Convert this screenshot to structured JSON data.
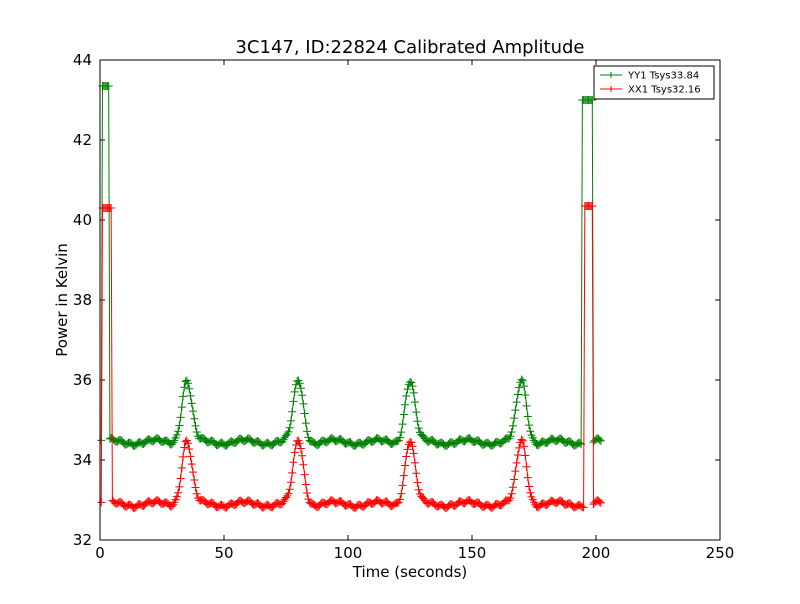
{
  "chart_data": {
    "type": "line",
    "title": "3C147, ID:22824 Calibrated Amplitude",
    "xlabel": "Time (seconds)",
    "ylabel": "Power in Kelvin",
    "xlim": [
      0,
      250
    ],
    "ylim": [
      32,
      44
    ],
    "xticks": [
      "0",
      "50",
      "100",
      "150",
      "200",
      "250"
    ],
    "yticks": [
      "32",
      "34",
      "36",
      "38",
      "40",
      "42",
      "44"
    ],
    "grid": false,
    "legend_position": "top-right",
    "marker": "+",
    "series": [
      {
        "name": "YY1 Tsys33.84",
        "color": "#008000",
        "baseline": 34.45,
        "peak_height": 1.55,
        "peak_centers": [
          35,
          80,
          125,
          170
        ],
        "peak_halfwidth": 2.0,
        "plateau_start": [
          1,
          3.5,
          43.35
        ],
        "plateau_end": [
          194.5,
          198.5,
          43.0
        ],
        "tail": [
          199.5,
          202,
          34.45
        ],
        "x_start": 0.5,
        "x_end": 202,
        "step": 0.5
      },
      {
        "name": "XX1 Tsys32.16",
        "color": "#ff0000",
        "baseline": 32.9,
        "peak_height": 1.6,
        "peak_centers": [
          35,
          80,
          125,
          170
        ],
        "peak_halfwidth": 2.0,
        "plateau_start": [
          1,
          4.5,
          40.3
        ],
        "plateau_end": [
          195.5,
          198.5,
          40.35
        ],
        "tail": [
          199.5,
          202,
          32.95
        ],
        "x_start": 0.5,
        "x_end": 202,
        "step": 0.5
      }
    ]
  }
}
